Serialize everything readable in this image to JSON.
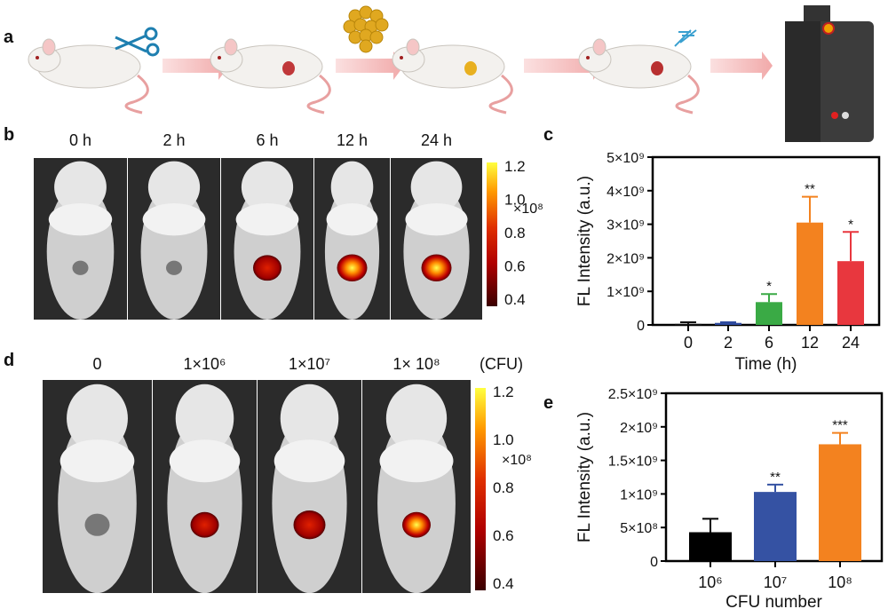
{
  "panel_labels": {
    "a": "a",
    "b": "b",
    "c": "c",
    "d": "d",
    "e": "e"
  },
  "panel_a": {
    "steps": [
      "scissors-incision",
      "wound",
      "bacteria-applied",
      "infected-wound",
      "probe-injection",
      "imaging-system"
    ]
  },
  "panel_b": {
    "time_labels": [
      "0 h",
      "2 h",
      "6 h",
      "12 h",
      "24 h"
    ],
    "colorbar": {
      "ticks": [
        "1.2",
        "1.0",
        "0.8",
        "0.6",
        "0.4"
      ],
      "multiplier": "×10⁸",
      "colors": [
        "#3a0000",
        "#b00000",
        "#e03000",
        "#ff9a00",
        "#ffff40"
      ]
    }
  },
  "panel_d": {
    "dose_labels": [
      "0",
      "1×10⁶",
      "1×10⁷",
      "1× 10⁸"
    ],
    "unit": "(CFU)",
    "colorbar": {
      "ticks": [
        "1.2",
        "1.0",
        "0.8",
        "0.6",
        "0.4"
      ],
      "multiplier": "×10⁸"
    }
  },
  "chart_data": [
    {
      "type": "bar",
      "panel": "c",
      "categories": [
        "0",
        "2",
        "6",
        "12",
        "24"
      ],
      "values": [
        30000000.0,
        60000000.0,
        680000000.0,
        3050000000.0,
        1900000000.0
      ],
      "error_upper": [
        80000000.0,
        80000000.0,
        920000000.0,
        3820000000.0,
        2770000000.0
      ],
      "significance": [
        "",
        "",
        "*",
        "**",
        "*"
      ],
      "colors": [
        "#111111",
        "#2e4a9e",
        "#3aaa45",
        "#f3821f",
        "#e8373e"
      ],
      "xlabel": "Time (h)",
      "ylabel": "FL Intensity (a.u.)",
      "ylim": [
        0,
        5000000000.0
      ],
      "yticks": [
        "0",
        "1×10⁹",
        "2×10⁹",
        "3×10⁹",
        "4×10⁹",
        "5×10⁹"
      ],
      "grid": false
    },
    {
      "type": "bar",
      "panel": "e",
      "categories": [
        "10⁶",
        "10⁷",
        "10⁸"
      ],
      "values": [
        430000000.0,
        1030000000.0,
        1740000000.0
      ],
      "error_upper": [
        630000000.0,
        1140000000.0,
        1910000000.0
      ],
      "significance": [
        "",
        "**",
        "***"
      ],
      "colors": [
        "#000000",
        "#3552a3",
        "#f3821f"
      ],
      "xlabel": "CFU number",
      "ylabel": "FL Intensity (a.u.)",
      "ylim": [
        0,
        2500000000.0
      ],
      "yticks": [
        "0",
        "5×10⁸",
        "1×10⁹",
        "1.5×10⁹",
        "2×10⁹",
        "2.5×10⁹"
      ],
      "grid": false
    }
  ]
}
